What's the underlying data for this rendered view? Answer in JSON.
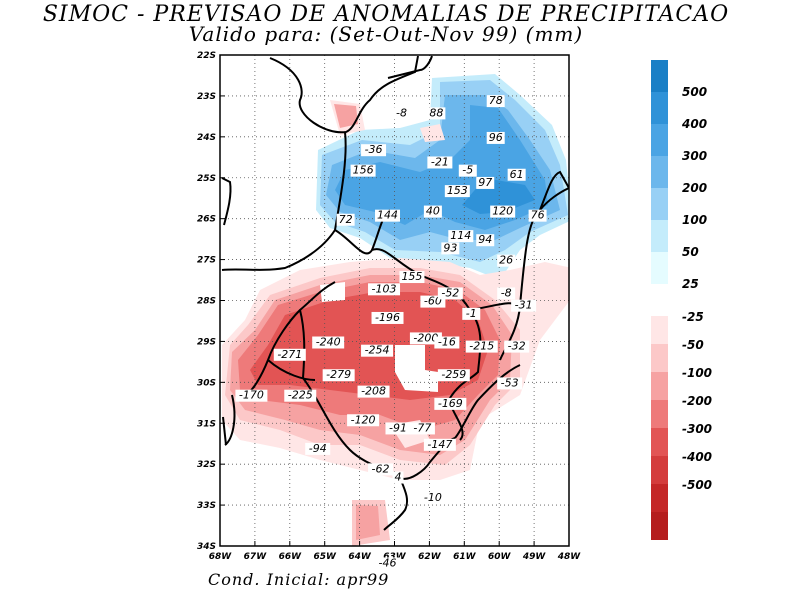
{
  "title": "SIMOC - PREVISAO DE ANOMALIAS DE PRECIPITACAO",
  "subtitle": "Valido para: (Set-Out-Nov 99) (mm)",
  "footer": "Cond. Inicial: apr99",
  "axes": {
    "lat_labels": [
      "22S",
      "23S",
      "24S",
      "25S",
      "26S",
      "27S",
      "28S",
      "29S",
      "30S",
      "31S",
      "32S",
      "33S",
      "34S"
    ],
    "lon_labels": [
      "68W",
      "67W",
      "66W",
      "65W",
      "64W",
      "63W",
      "62W",
      "61W",
      "60W",
      "49W",
      "48W"
    ]
  },
  "colorbar_positive": {
    "labels": [
      "500",
      "400",
      "300",
      "200",
      "100",
      "50",
      "25"
    ],
    "colors": [
      "#1a7fc6",
      "#2f92d8",
      "#4aa4e4",
      "#6cb7ec",
      "#98d0f5",
      "#c4ecfb",
      "#e5fcff"
    ]
  },
  "colorbar_negative": {
    "labels": [
      "-25",
      "-50",
      "-100",
      "-200",
      "-300",
      "-400",
      "-500"
    ],
    "colors": [
      "#ffe6e6",
      "#fcc8c8",
      "#f6a2a2",
      "#ee7a7a",
      "#e25454",
      "#d43c3c",
      "#c42727",
      "#b51d1d"
    ]
  },
  "anomaly_values": [
    {
      "text": "-8",
      "lon": -62.8,
      "lat": -23.5
    },
    {
      "text": "88",
      "lon": -61.8,
      "lat": -23.5
    },
    {
      "text": "78",
      "lon": -60.1,
      "lat": -23.2
    },
    {
      "text": "96",
      "lon": -60.1,
      "lat": -24.1
    },
    {
      "text": "-36",
      "lon": -63.6,
      "lat": -24.4
    },
    {
      "text": "156",
      "lon": -63.9,
      "lat": -24.9
    },
    {
      "text": "-21",
      "lon": -61.7,
      "lat": -24.7
    },
    {
      "text": "-5",
      "lon": -60.9,
      "lat": -24.9
    },
    {
      "text": "61",
      "lon": -59.5,
      "lat": -25.0
    },
    {
      "text": "153",
      "lon": -61.2,
      "lat": -25.4
    },
    {
      "text": "97",
      "lon": -60.4,
      "lat": -25.2
    },
    {
      "text": "40",
      "lon": -61.9,
      "lat": -25.9
    },
    {
      "text": "120",
      "lon": -59.9,
      "lat": -25.9
    },
    {
      "text": "76",
      "lon": -58.9,
      "lat": -26.0
    },
    {
      "text": "72",
      "lon": -64.4,
      "lat": -26.1
    },
    {
      "text": "144",
      "lon": -63.2,
      "lat": -26.0
    },
    {
      "text": "114",
      "lon": -61.1,
      "lat": -26.5
    },
    {
      "text": "94",
      "lon": -60.4,
      "lat": -26.6
    },
    {
      "text": "93",
      "lon": -61.4,
      "lat": -26.8
    },
    {
      "text": "26",
      "lon": -59.8,
      "lat": -27.1
    },
    {
      "text": "155",
      "lon": -62.5,
      "lat": -27.5
    },
    {
      "text": "-103",
      "lon": -63.3,
      "lat": -27.8
    },
    {
      "text": "-60",
      "lon": -61.9,
      "lat": -28.1
    },
    {
      "text": "-52",
      "lon": -61.4,
      "lat": -27.9
    },
    {
      "text": "-8",
      "lon": -59.8,
      "lat": -27.9
    },
    {
      "text": "-31",
      "lon": -59.3,
      "lat": -28.2
    },
    {
      "text": "-1",
      "lon": -60.8,
      "lat": -28.4
    },
    {
      "text": "-196",
      "lon": -63.2,
      "lat": -28.5
    },
    {
      "text": "-240",
      "lon": -64.9,
      "lat": -29.1
    },
    {
      "text": "-254",
      "lon": -63.5,
      "lat": -29.3
    },
    {
      "text": "-200",
      "lon": -62.1,
      "lat": -29.0
    },
    {
      "text": "-16",
      "lon": -61.5,
      "lat": -29.1
    },
    {
      "text": "-215",
      "lon": -60.5,
      "lat": -29.2
    },
    {
      "text": "-32",
      "lon": -59.5,
      "lat": -29.2
    },
    {
      "text": "-271",
      "lon": -66.0,
      "lat": -29.4
    },
    {
      "text": "-279",
      "lon": -64.6,
      "lat": -29.9
    },
    {
      "text": "-259",
      "lon": -61.3,
      "lat": -29.9
    },
    {
      "text": "-53",
      "lon": -59.7,
      "lat": -30.1
    },
    {
      "text": "-170",
      "lon": -67.1,
      "lat": -30.4
    },
    {
      "text": "-225",
      "lon": -65.7,
      "lat": -30.4
    },
    {
      "text": "-208",
      "lon": -63.6,
      "lat": -30.3
    },
    {
      "text": "-169",
      "lon": -61.4,
      "lat": -30.6
    },
    {
      "text": "-120",
      "lon": -63.9,
      "lat": -31.0
    },
    {
      "text": "-91",
      "lon": -62.9,
      "lat": -31.2
    },
    {
      "text": "-77",
      "lon": -62.2,
      "lat": -31.2
    },
    {
      "text": "-147",
      "lon": -61.7,
      "lat": -31.6
    },
    {
      "text": "-94",
      "lon": -65.2,
      "lat": -31.7
    },
    {
      "text": "-62",
      "lon": -63.4,
      "lat": -32.2
    },
    {
      "text": "4",
      "lon": -62.9,
      "lat": -32.4
    },
    {
      "text": "-10",
      "lon": -61.9,
      "lat": -32.9
    },
    {
      "text": "-46",
      "lon": -63.2,
      "lat": -34.5
    }
  ]
}
